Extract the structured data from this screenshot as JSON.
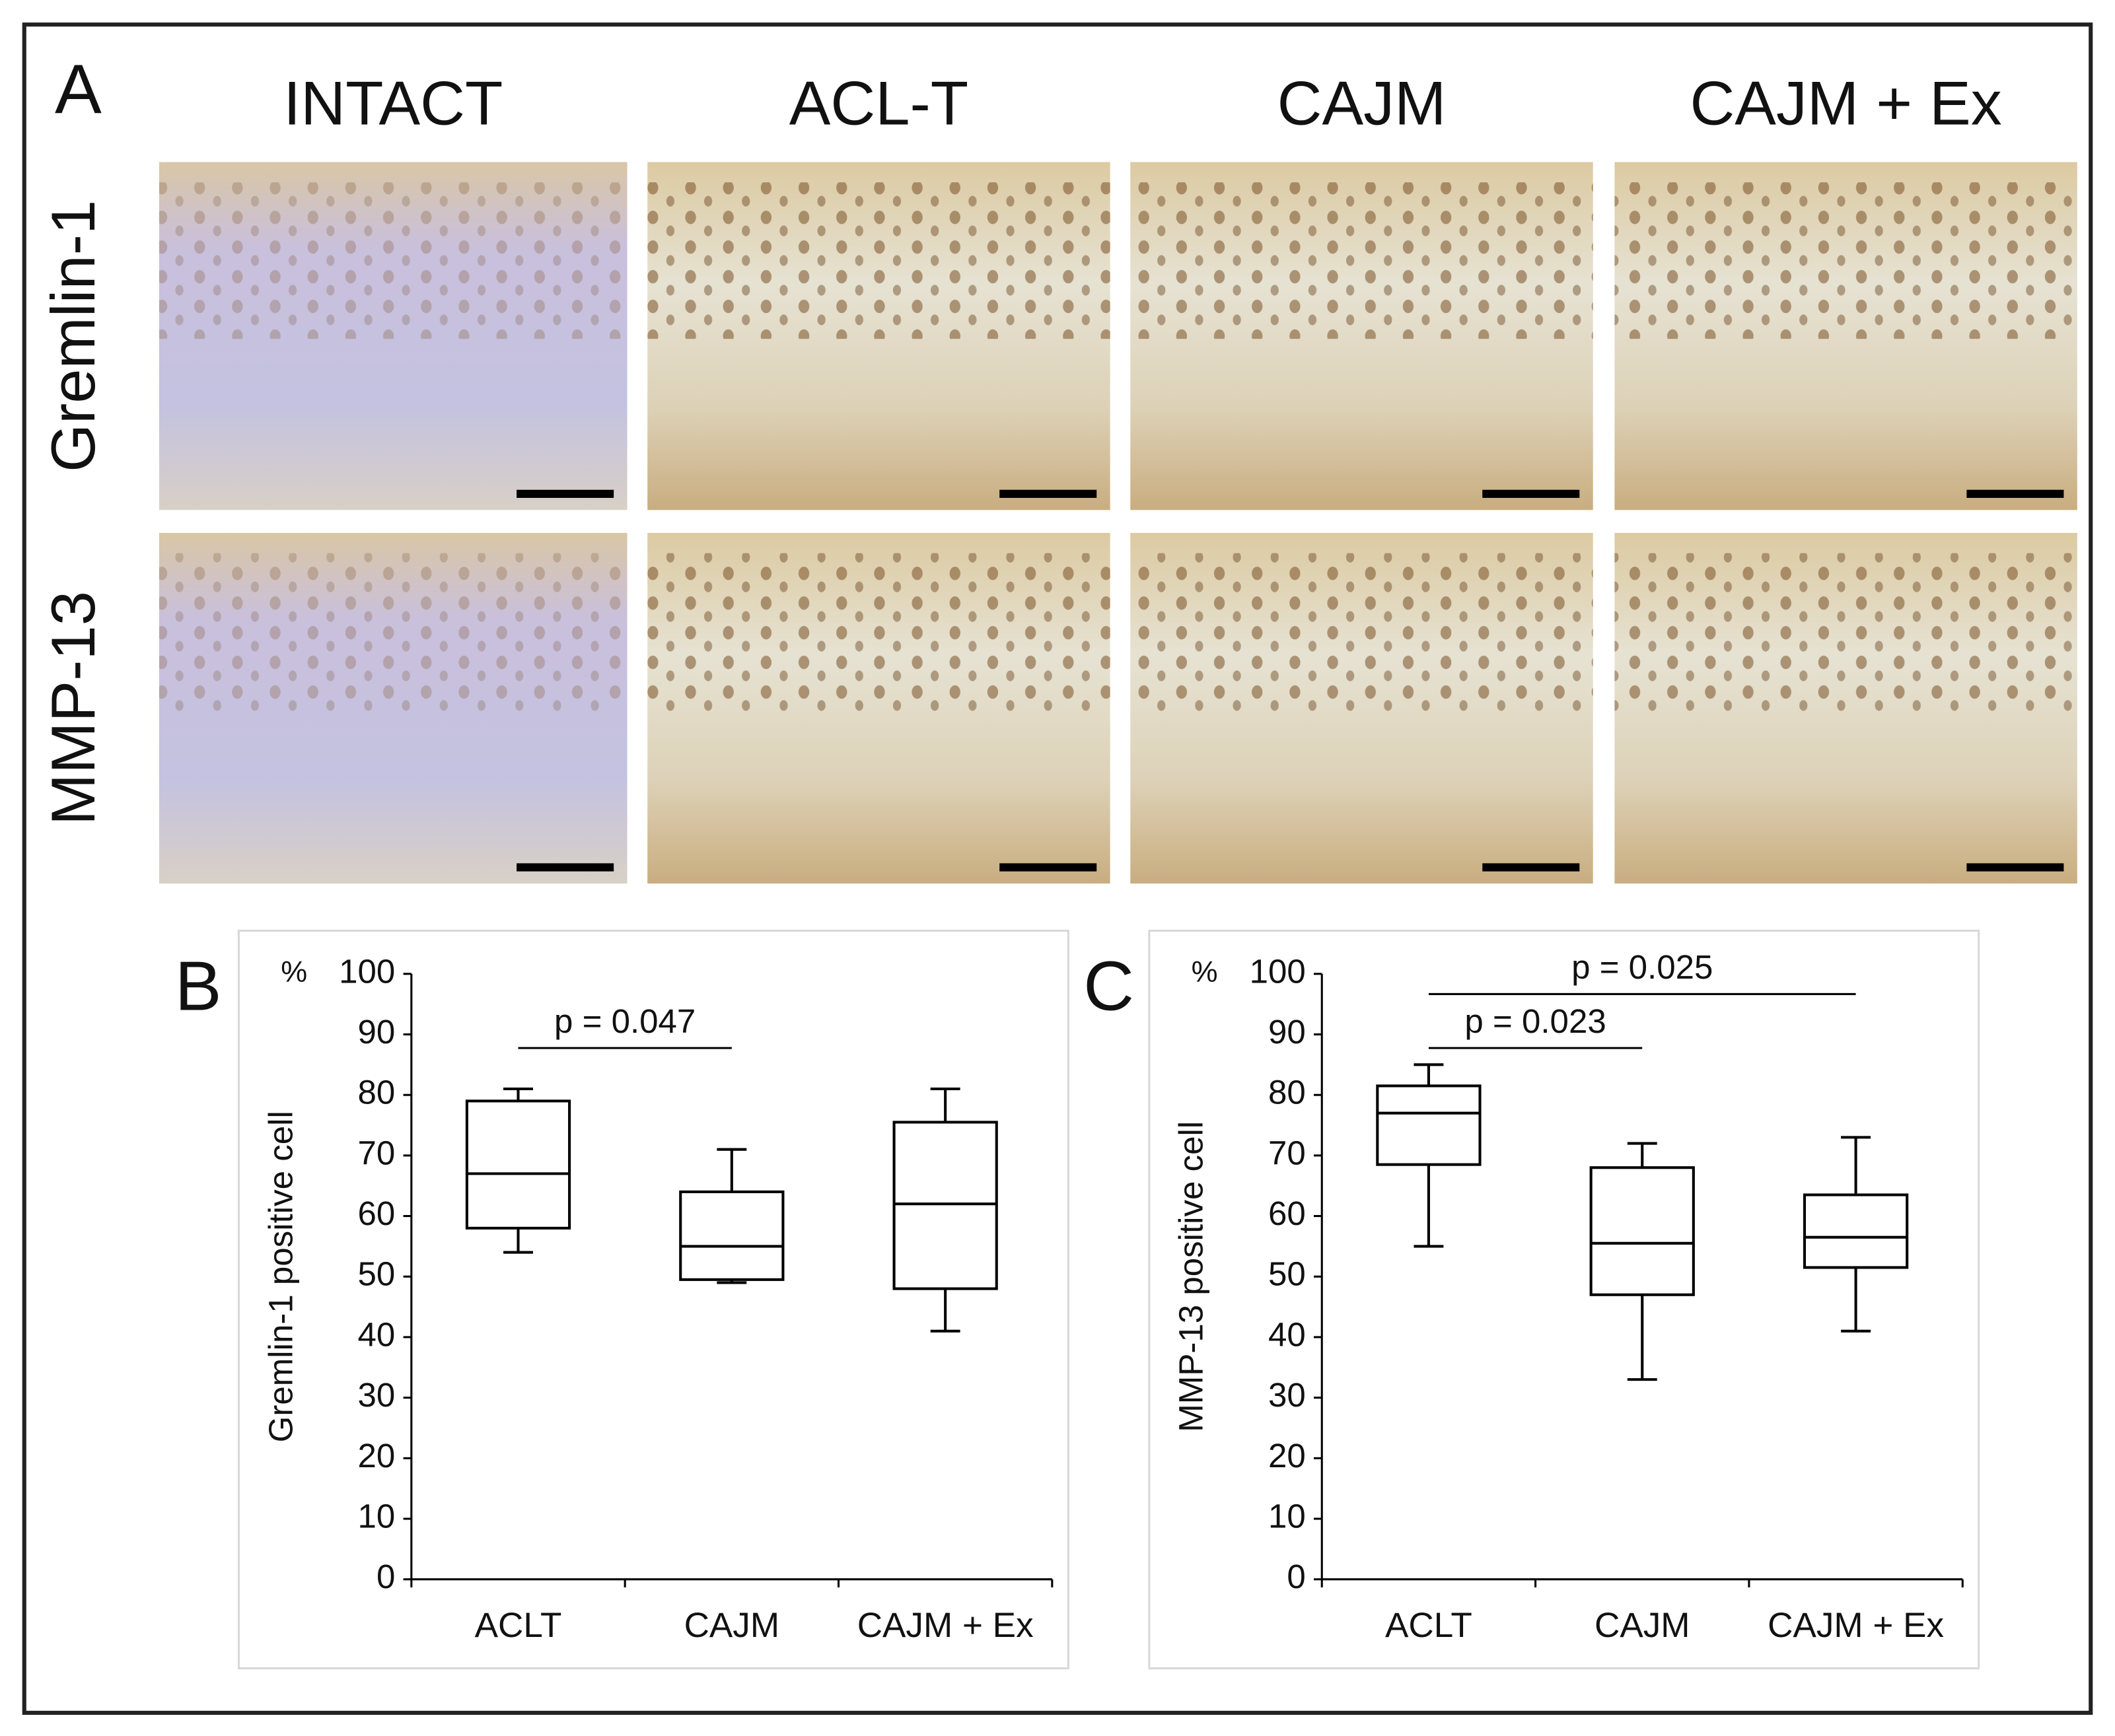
{
  "panel_a": {
    "label": "A",
    "columns": [
      "INTACT",
      "ACL-T",
      "CAJM",
      "CAJM + Ex"
    ],
    "rows": [
      "Gremlin-1",
      "MMP-13"
    ]
  },
  "chart_data": [
    {
      "type": "box",
      "panel_label": "B",
      "y_unit": "%",
      "ylabel": "Gremlin-1 positive cell",
      "categories": [
        "ACLT",
        "CAJM",
        "CAJM + Ex"
      ],
      "min": [
        54,
        49,
        41
      ],
      "q1": [
        58,
        49.5,
        48
      ],
      "median": [
        67,
        55,
        62
      ],
      "q3": [
        79,
        64,
        75.5
      ],
      "max": [
        81,
        71,
        81
      ],
      "ylim": [
        0,
        100
      ],
      "yticks": [
        0,
        10,
        20,
        30,
        40,
        50,
        60,
        70,
        80,
        90,
        100
      ],
      "comparisons": [
        {
          "label": "p = 0.047",
          "groups": [
            "ACLT",
            "CAJM"
          ]
        }
      ]
    },
    {
      "type": "box",
      "panel_label": "C",
      "y_unit": "%",
      "ylabel": "MMP-13 positive cell",
      "categories": [
        "ACLT",
        "CAJM",
        "CAJM + Ex"
      ],
      "min": [
        55,
        33,
        41
      ],
      "q1": [
        68.5,
        47,
        51.5
      ],
      "median": [
        77,
        55.5,
        56.5
      ],
      "q3": [
        81.5,
        68,
        63.5
      ],
      "max": [
        85,
        72,
        73
      ],
      "ylim": [
        0,
        100
      ],
      "yticks": [
        0,
        10,
        20,
        30,
        40,
        50,
        60,
        70,
        80,
        90,
        100
      ],
      "comparisons": [
        {
          "label": "p = 0.023",
          "groups": [
            "ACLT",
            "CAJM"
          ]
        },
        {
          "label": "p = 0.025",
          "groups": [
            "ACLT",
            "CAJM + Ex"
          ]
        }
      ]
    }
  ]
}
